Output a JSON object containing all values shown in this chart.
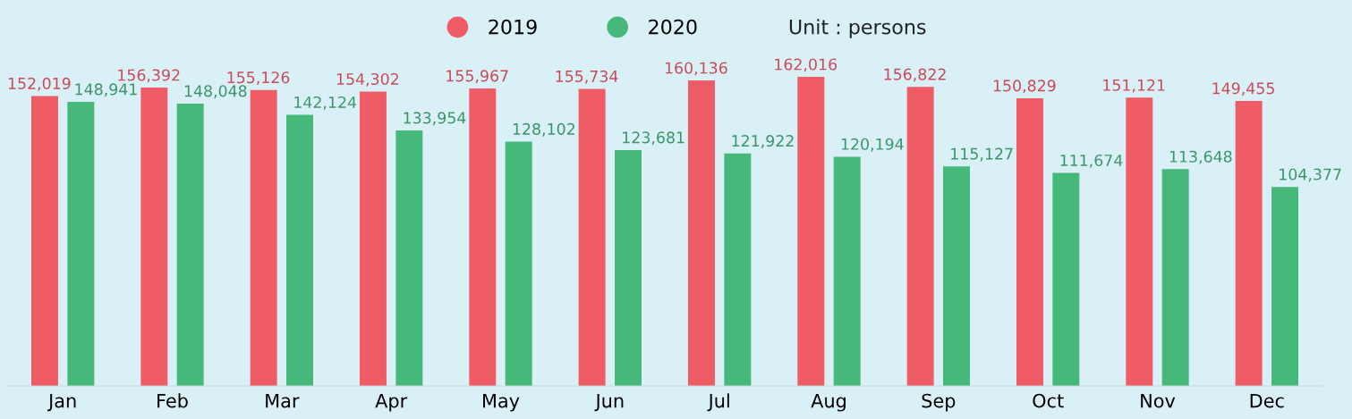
{
  "chart_data": {
    "type": "bar",
    "categories": [
      "Jan",
      "Feb",
      "Mar",
      "Apr",
      "May",
      "Jun",
      "Jul",
      "Aug",
      "Sep",
      "Oct",
      "Nov",
      "Dec"
    ],
    "series": [
      {
        "name": "2019",
        "color": "#f05c66",
        "values": [
          152019,
          156392,
          155126,
          154302,
          155967,
          155734,
          160136,
          162016,
          156822,
          150829,
          151121,
          149455
        ],
        "value_labels": [
          "152,019",
          "156,392",
          "155,126",
          "154,302",
          "155,967",
          "155,734",
          "160,136",
          "162,016",
          "156,822",
          "150,829",
          "151,121",
          "149,455"
        ]
      },
      {
        "name": "2020",
        "color": "#46b87a",
        "values": [
          148941,
          148048,
          142124,
          133954,
          128102,
          123681,
          121922,
          120194,
          115127,
          111674,
          113648,
          104377
        ],
        "value_labels": [
          "148,941",
          "148,048",
          "142,124",
          "133,954",
          "128,102",
          "123,681",
          "121,922",
          "120,194",
          "115,127",
          "111,674",
          "113,648",
          "104,377"
        ]
      }
    ],
    "legend": "top",
    "grid": false,
    "tick_labels": "x",
    "annotations": [
      "Unit : persons"
    ]
  }
}
